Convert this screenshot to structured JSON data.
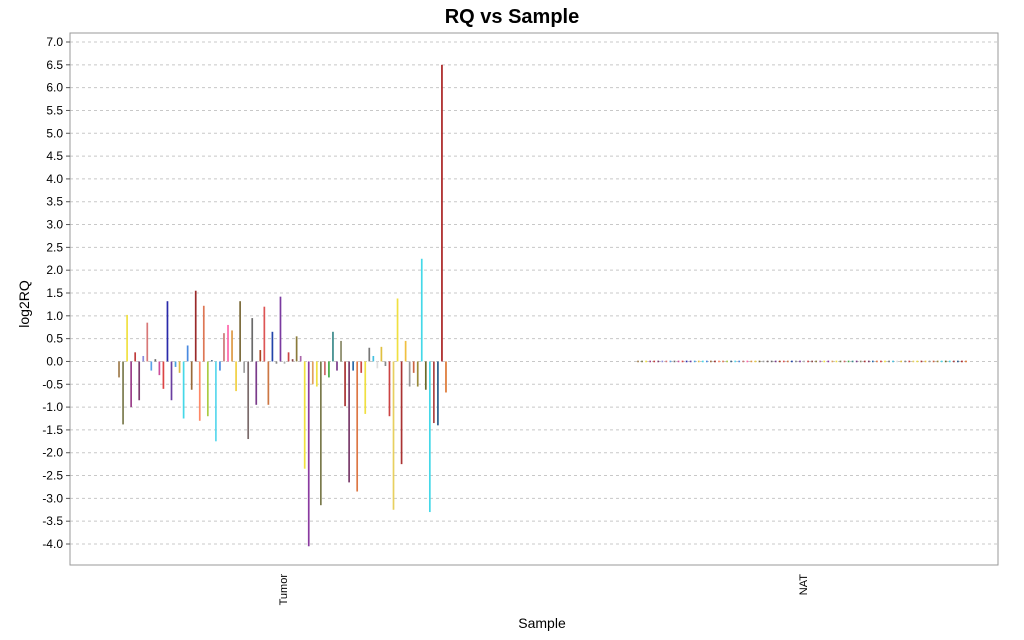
{
  "chart_data": {
    "type": "bar",
    "title": "RQ vs Sample",
    "xlabel": "Sample",
    "ylabel": "log2RQ",
    "ylim": [
      -4.4,
      7.2
    ],
    "yticks": [
      "7.0",
      "6.5",
      "6.0",
      "5.5",
      "5.0",
      "4.5",
      "4.0",
      "3.5",
      "3.0",
      "2.5",
      "2.0",
      "1.5",
      "1.0",
      "0.5",
      "0.0",
      "-0.5",
      "-1.0",
      "-1.5",
      "-2.0",
      "-2.5",
      "-3.0",
      "-3.5",
      "-4.0"
    ],
    "grid": true,
    "legend": "none",
    "categories": [
      "Tumor",
      "NAT"
    ],
    "groups": [
      {
        "category": "Tumor",
        "values": [
          -0.35,
          -1.38,
          1.02,
          -1.0,
          0.2,
          -0.85,
          0.12,
          0.85,
          -0.2,
          0.05,
          -0.3,
          -0.6,
          1.32,
          -0.85,
          -0.12,
          -0.25,
          -1.25,
          0.35,
          -0.62,
          1.55,
          -1.3,
          1.22,
          -1.2,
          0.03,
          -1.75,
          -0.2,
          0.62,
          0.8,
          0.68,
          -0.65,
          1.32,
          -0.25,
          -1.7,
          0.95,
          -0.95,
          0.25,
          1.2,
          -0.95,
          0.65,
          -0.05,
          1.42,
          -0.05,
          0.2,
          0.05,
          0.55,
          0.12,
          -2.35,
          -4.05,
          -0.5,
          -0.55,
          -3.15,
          -0.3,
          -0.35,
          0.65,
          -0.2,
          0.45,
          -0.98,
          -2.65,
          -0.2,
          -2.85,
          -0.25,
          -1.15,
          0.3,
          0.12,
          -0.15,
          0.32,
          -0.1,
          -1.2,
          -3.25,
          1.38,
          -2.25,
          0.45,
          -0.55,
          -0.25,
          -0.55,
          2.25,
          -0.62,
          -3.3,
          -1.35,
          -1.4,
          6.5,
          -0.68
        ],
        "colors": [
          "#a07c4c",
          "#7a7a4c",
          "#f0e040",
          "#9a3e8a",
          "#c03c3c",
          "#7c3c6e",
          "#8c8cdc",
          "#d87878",
          "#5ca0e8",
          "#6a6a6a",
          "#cc4c9c",
          "#dd4444",
          "#2a2aaa",
          "#6a3ea0",
          "#4aa0dc",
          "#ddbb44",
          "#44d8e8",
          "#4a8ae0",
          "#9a6a3a",
          "#9a2a2a",
          "#ff8866",
          "#dd7755",
          "#aacc44",
          "#446688",
          "#5ad8ee",
          "#4a8ae0",
          "#cc7777",
          "#ff66aa",
          "#dd9944",
          "#f0d040",
          "#7a6a3a",
          "#a0a0a0",
          "#7a6a6a",
          "#6a6a6a",
          "#7a3a8a",
          "#aa4422",
          "#dd5555",
          "#cc7744",
          "#2244aa",
          "#888888",
          "#7a3aa0",
          "#b0b0b0",
          "#cc4444",
          "#884444",
          "#8a7a3a",
          "#aa66aa",
          "#f0e040",
          "#8a3aa0",
          "#e0a060",
          "#f0e040",
          "#7a7a4c",
          "#cc6666",
          "#44aa44",
          "#3a8a8a",
          "#7a3a8a",
          "#888866",
          "#aa3333",
          "#7a3a6a",
          "#2a6aaa",
          "#dd7744",
          "#cc4444",
          "#f0e040",
          "#777777",
          "#44c0e0",
          "#dddddd",
          "#e0c040",
          "#888888",
          "#cc4444",
          "#e8d060",
          "#f0e040",
          "#aa3333",
          "#f0c040",
          "#999999",
          "#cc6644",
          "#9a8a3a",
          "#44d8e8",
          "#6a6a2a",
          "#44d8e8",
          "#aa4444",
          "#2a5a8a",
          "#aa2222",
          "#dd7733"
        ]
      },
      {
        "category": "NAT",
        "values": [
          0,
          0,
          0,
          0,
          0,
          0,
          0,
          0,
          0,
          0,
          0,
          0,
          0,
          0,
          0,
          0,
          0,
          0,
          0,
          0,
          0,
          0,
          0,
          0,
          0,
          0,
          0,
          0,
          0,
          0,
          0,
          0,
          0,
          0,
          0,
          0,
          0,
          0,
          0,
          0,
          0,
          0,
          0,
          0,
          0,
          0,
          0,
          0,
          0,
          0,
          0,
          0,
          0,
          0,
          0,
          0,
          0,
          0,
          0,
          0,
          0,
          0,
          0,
          0,
          0,
          0,
          0,
          0,
          0,
          0,
          0,
          0,
          0,
          0,
          0,
          0,
          0,
          0,
          0,
          0,
          0,
          0
        ],
        "colors": [
          "#a07c4c",
          "#7a7a4c",
          "#f0e040",
          "#9a3e8a",
          "#c03c3c",
          "#7c3c6e",
          "#8c8cdc",
          "#d87878",
          "#5ca0e8",
          "#6a6a6a",
          "#cc4c9c",
          "#dd4444",
          "#2a2aaa",
          "#6a3ea0",
          "#4aa0dc",
          "#ddbb44",
          "#44d8e8",
          "#4a8ae0",
          "#9a6a3a",
          "#9a2a2a",
          "#ff8866",
          "#dd7755",
          "#aacc44",
          "#446688",
          "#5ad8ee",
          "#4a8ae0",
          "#cc7777",
          "#ff66aa",
          "#dd9944",
          "#f0d040",
          "#7a6a3a",
          "#a0a0a0",
          "#7a6a6a",
          "#6a6a6a",
          "#7a3a8a",
          "#aa4422",
          "#dd5555",
          "#cc7744",
          "#2244aa",
          "#888888",
          "#7a3aa0",
          "#b0b0b0",
          "#cc4444",
          "#884444",
          "#8a7a3a",
          "#aa66aa",
          "#f0e040",
          "#8a3aa0",
          "#e0a060",
          "#f0e040",
          "#7a7a4c",
          "#cc6666",
          "#44aa44",
          "#3a8a8a",
          "#7a3a8a",
          "#888866",
          "#aa3333",
          "#7a3a6a",
          "#2a6aaa",
          "#dd7744",
          "#cc4444",
          "#f0e040",
          "#777777",
          "#44c0e0",
          "#dddddd",
          "#e0c040",
          "#888888",
          "#cc4444",
          "#e8d060",
          "#f0e040",
          "#aa3333",
          "#f0c040",
          "#999999",
          "#cc6644",
          "#9a8a3a",
          "#44d8e8",
          "#6a6a2a",
          "#44d8e8",
          "#aa4444",
          "#2a5a8a",
          "#aa2222",
          "#dd7733"
        ]
      }
    ]
  }
}
